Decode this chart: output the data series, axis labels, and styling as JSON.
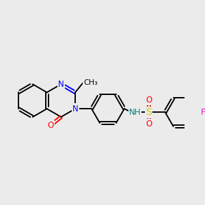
{
  "background_color": "#ebebeb",
  "atom_colors": {
    "N": "#0000ff",
    "O": "#ff0000",
    "S": "#cccc00",
    "F": "#ff00cc",
    "NH": "#008080",
    "C": "#000000"
  },
  "font_size": 8.5,
  "bond_lw": 1.4,
  "figsize": [
    3.0,
    3.0
  ],
  "dpi": 100,
  "xlim": [
    0.0,
    9.5
  ],
  "ylim": [
    1.0,
    8.0
  ]
}
